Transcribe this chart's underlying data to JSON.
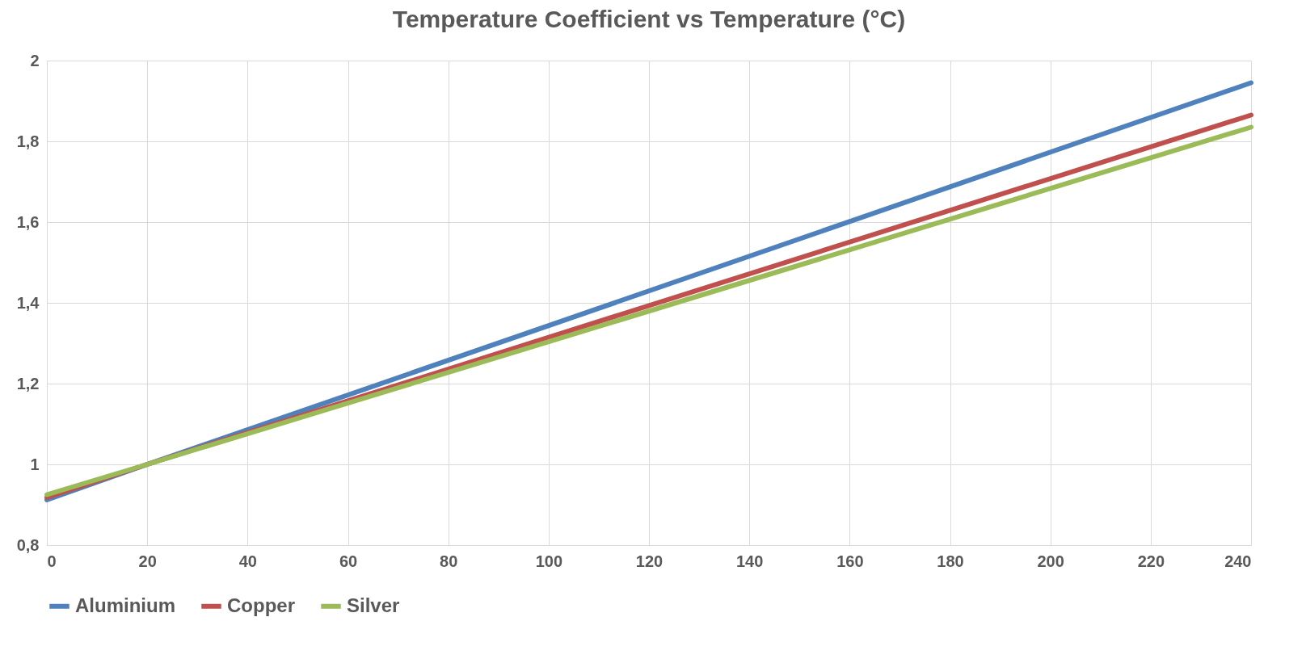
{
  "chart_data": {
    "type": "line",
    "title": "Temperature Coefficient vs Temperature (°C)",
    "x": [
      0,
      20,
      240
    ],
    "series": [
      {
        "name": "Aluminium",
        "color": "#4f81bd",
        "values": [
          0.912,
          1,
          1.945
        ]
      },
      {
        "name": "Copper",
        "color": "#c0504d",
        "values": [
          0.918,
          1,
          1.865
        ]
      },
      {
        "name": "Silver",
        "color": "#9bbb59",
        "values": [
          0.925,
          1,
          1.835
        ]
      }
    ],
    "xlim": [
      0,
      240
    ],
    "xticks": [
      0,
      20,
      40,
      60,
      80,
      100,
      120,
      140,
      160,
      180,
      200,
      220,
      240
    ],
    "ylim": [
      0.8,
      2
    ],
    "yticks": [
      {
        "value": 0.8,
        "label": "0,8"
      },
      1,
      {
        "value": 1.2,
        "label": "1,2"
      },
      {
        "value": 1.4,
        "label": "1,4"
      },
      {
        "value": 1.6,
        "label": "1,6"
      },
      {
        "value": 1.8,
        "label": "1,8"
      },
      2
    ],
    "grid": true,
    "legend": "bottom",
    "marker": "none",
    "line_style": "solid"
  }
}
